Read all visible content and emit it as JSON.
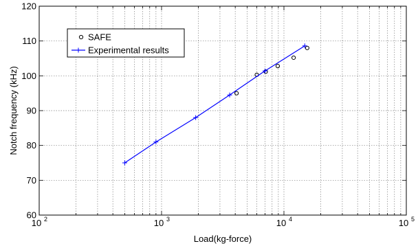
{
  "chart_data": {
    "type": "scatter",
    "title": "",
    "xlabel": "Load(kg-force)",
    "ylabel": "Notch frequency (kHz)",
    "x_scale": "log",
    "xlim": [
      100,
      100000
    ],
    "ylim": [
      60,
      120
    ],
    "x_ticks": [
      {
        "base": "10",
        "exp": "2"
      },
      {
        "base": "10",
        "exp": "3"
      },
      {
        "base": "10",
        "exp": "4"
      },
      {
        "base": "10",
        "exp": "5"
      }
    ],
    "y_ticks": [
      "60",
      "70",
      "80",
      "90",
      "100",
      "110",
      "120"
    ],
    "grid": true,
    "legend": {
      "placement": "top-left",
      "entries": [
        "SAFE",
        "Experimental results"
      ]
    },
    "series": [
      {
        "name": "SAFE",
        "marker": "circle",
        "line": false,
        "color": "#000000",
        "x": [
          4100,
          6000,
          7100,
          8900,
          12000,
          15500
        ],
        "y": [
          95.0,
          100.3,
          101.2,
          102.8,
          105.2,
          108.0
        ]
      },
      {
        "name": "Experimental results",
        "marker": "plus",
        "line": true,
        "color": "#0000ff",
        "x": [
          500,
          900,
          1900,
          3600,
          7000,
          14800
        ],
        "y": [
          75.0,
          81.0,
          88.0,
          94.5,
          101.4,
          108.6
        ]
      }
    ]
  }
}
